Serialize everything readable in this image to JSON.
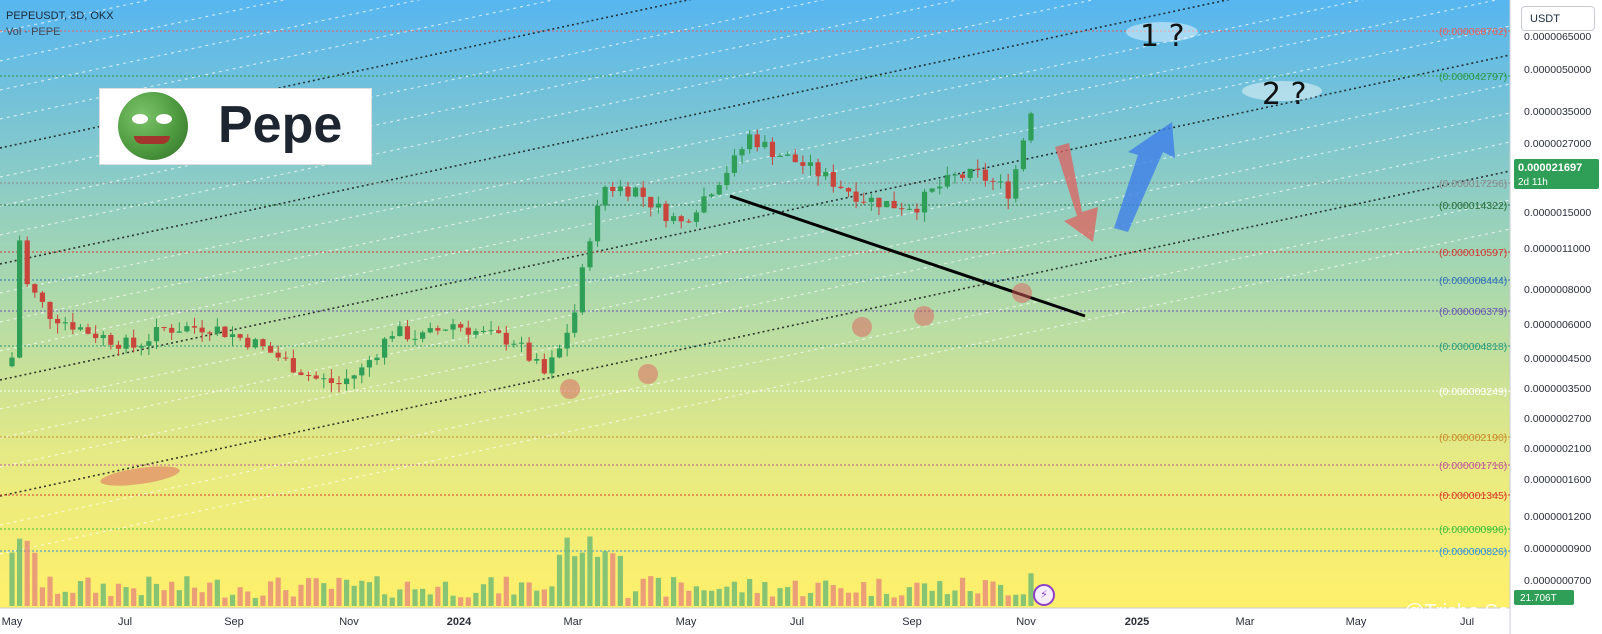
{
  "header": {
    "symbol_line": "PEPEUSDT, 3D, OKX",
    "volume_line": "Vol · PEPE"
  },
  "logo": {
    "word": "Pepe"
  },
  "currency_button": "USDT",
  "watermark": "@Trisha Saha",
  "annotations": {
    "target1": "1 ?",
    "target2": "2 ?"
  },
  "colors": {
    "bg_top": "#57b6f0",
    "bg_bottom": "#fff06a",
    "up": "#2f9e57",
    "down": "#c9443a",
    "trendline": "#000000",
    "arrow_up": "#3f7ee8",
    "arrow_down": "#e0605e"
  },
  "chart_data": {
    "type": "candlestick",
    "title": "PEPEUSDT, 3D, OKX",
    "scale": "log",
    "ylim": [
      7e-07,
      6.5e-05
    ],
    "x_ticks": [
      "May",
      "Jul",
      "Sep",
      "Nov",
      "2024",
      "Mar",
      "May",
      "Jul",
      "Sep",
      "Nov",
      "2025",
      "Mar",
      "May",
      "Jul"
    ],
    "y_ticks": [
      "0.0000065000",
      "0.0000050000",
      "0.0000035000",
      "0.0000027000",
      "0.0000015000",
      "0.0000011000",
      "0.0000008000",
      "0.0000006000",
      "0.0000004500",
      "0.0000003500",
      "0.0000002700",
      "0.0000002100",
      "0.0000001600",
      "0.0000001200",
      "0.0000000900",
      "0.0000000700"
    ],
    "levels": [
      {
        "label": "(0.000068762)",
        "color": "#e0605e"
      },
      {
        "label": "(0.000042797)",
        "color": "#2b9a45"
      },
      {
        "label": "(0.000017256)",
        "color": "#8a8a8a"
      },
      {
        "label": "(0.000014322)",
        "color": "#2b6f3a"
      },
      {
        "label": "(0.000010597)",
        "color": "#d03a32"
      },
      {
        "label": "(0.000008444)",
        "color": "#2f6fb8"
      },
      {
        "label": "(0.000006379)",
        "color": "#6a52b0"
      },
      {
        "label": "(0.000004818)",
        "color": "#2a9a7e"
      },
      {
        "label": "(0.000003249)",
        "color": "#ffffff"
      },
      {
        "label": "(0.000002190)",
        "color": "#c98a2a"
      },
      {
        "label": "(0.000001716)",
        "color": "#c0569a"
      },
      {
        "label": "(0.000001345)",
        "color": "#d8392c"
      },
      {
        "label": "(0.000000996)",
        "color": "#3fbf3a"
      },
      {
        "label": "(0.000000826)",
        "color": "#2f8fd8"
      }
    ],
    "last_price": {
      "value": "0.000021697",
      "countdown": "2d 11h",
      "volume": "21.706T"
    },
    "candle_count": 135,
    "close_path_anchors": [
      [
        0,
        1.1
      ],
      [
        1,
        4.5
      ],
      [
        2,
        2.6
      ],
      [
        5,
        1.85
      ],
      [
        10,
        1.5
      ],
      [
        16,
        1.25
      ],
      [
        20,
        1.55
      ],
      [
        26,
        1.6
      ],
      [
        32,
        1.3
      ],
      [
        36,
        1.05
      ],
      [
        40,
        0.85
      ],
      [
        43,
        0.8
      ],
      [
        46,
        0.95
      ],
      [
        50,
        1.5
      ],
      [
        54,
        1.4
      ],
      [
        58,
        1.65
      ],
      [
        62,
        1.45
      ],
      [
        66,
        1.35
      ],
      [
        70,
        0.9
      ],
      [
        72,
        1.2
      ],
      [
        74,
        1.9
      ],
      [
        76,
        4.8
      ],
      [
        78,
        8.5
      ],
      [
        82,
        8.2
      ],
      [
        85,
        6.5
      ],
      [
        88,
        5.5
      ],
      [
        91,
        7.5
      ],
      [
        95,
        11.5
      ],
      [
        97,
        15.5
      ],
      [
        100,
        13.0
      ],
      [
        104,
        11.0
      ],
      [
        108,
        9.0
      ],
      [
        112,
        7.4
      ],
      [
        116,
        6.8
      ],
      [
        119,
        6.8
      ],
      [
        121,
        8.0
      ],
      [
        124,
        9.5
      ],
      [
        127,
        9.8
      ],
      [
        130,
        8.5
      ],
      [
        131,
        8.0
      ],
      [
        132,
        10.5
      ],
      [
        134,
        21.7
      ]
    ]
  }
}
